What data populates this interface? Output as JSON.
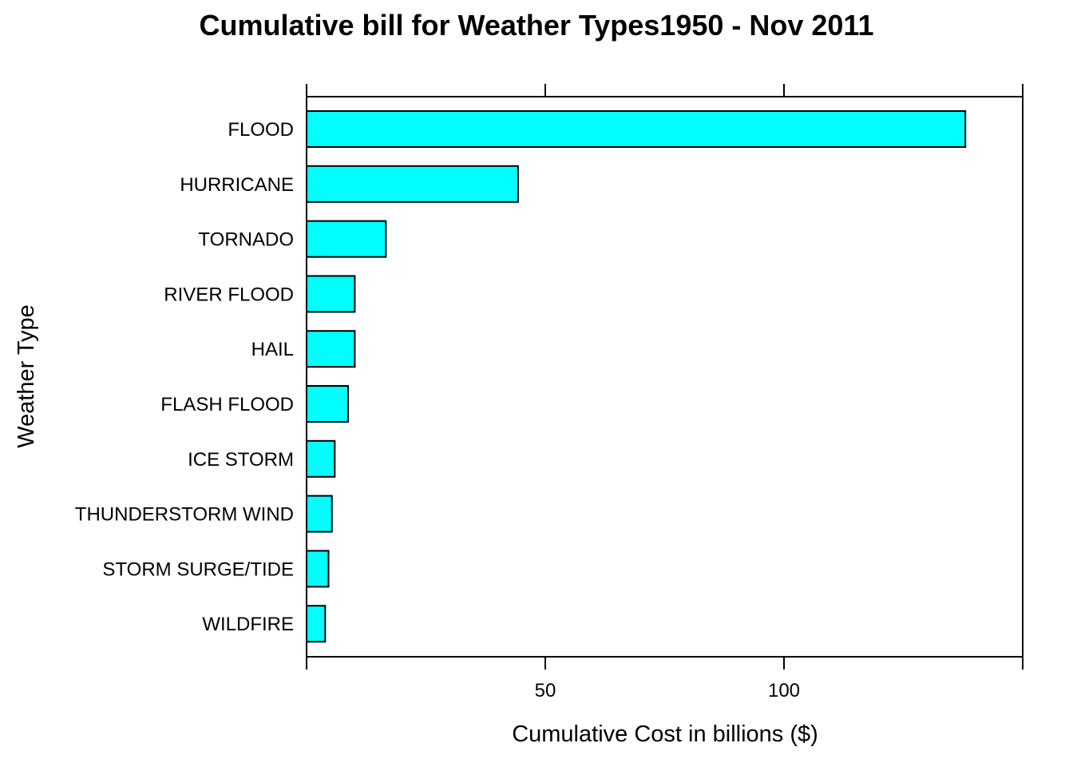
{
  "chart_data": {
    "type": "bar",
    "orientation": "horizontal",
    "title": "Cumulative bill for Weather Types1950 - Nov 2011",
    "xlabel": "Cumulative Cost in billions ($)",
    "ylabel": "Weather Type",
    "categories": [
      "FLOOD",
      "HURRICANE",
      "TORNADO",
      "RIVER FLOOD",
      "HAIL",
      "FLASH FLOOD",
      "ICE STORM",
      "THUNDERSTORM WIND",
      "STORM SURGE/TIDE",
      "WILDFIRE"
    ],
    "values": [
      138.0,
      44.3,
      16.6,
      10.1,
      10.1,
      8.7,
      5.9,
      5.3,
      4.6,
      3.9
    ],
    "xlim": [
      0,
      150
    ],
    "xticks": [
      50,
      100
    ],
    "xtick_labels": [
      "50",
      "100"
    ],
    "bar_color": "#00ffff",
    "bar_border_color": "#000000",
    "grid": false
  }
}
